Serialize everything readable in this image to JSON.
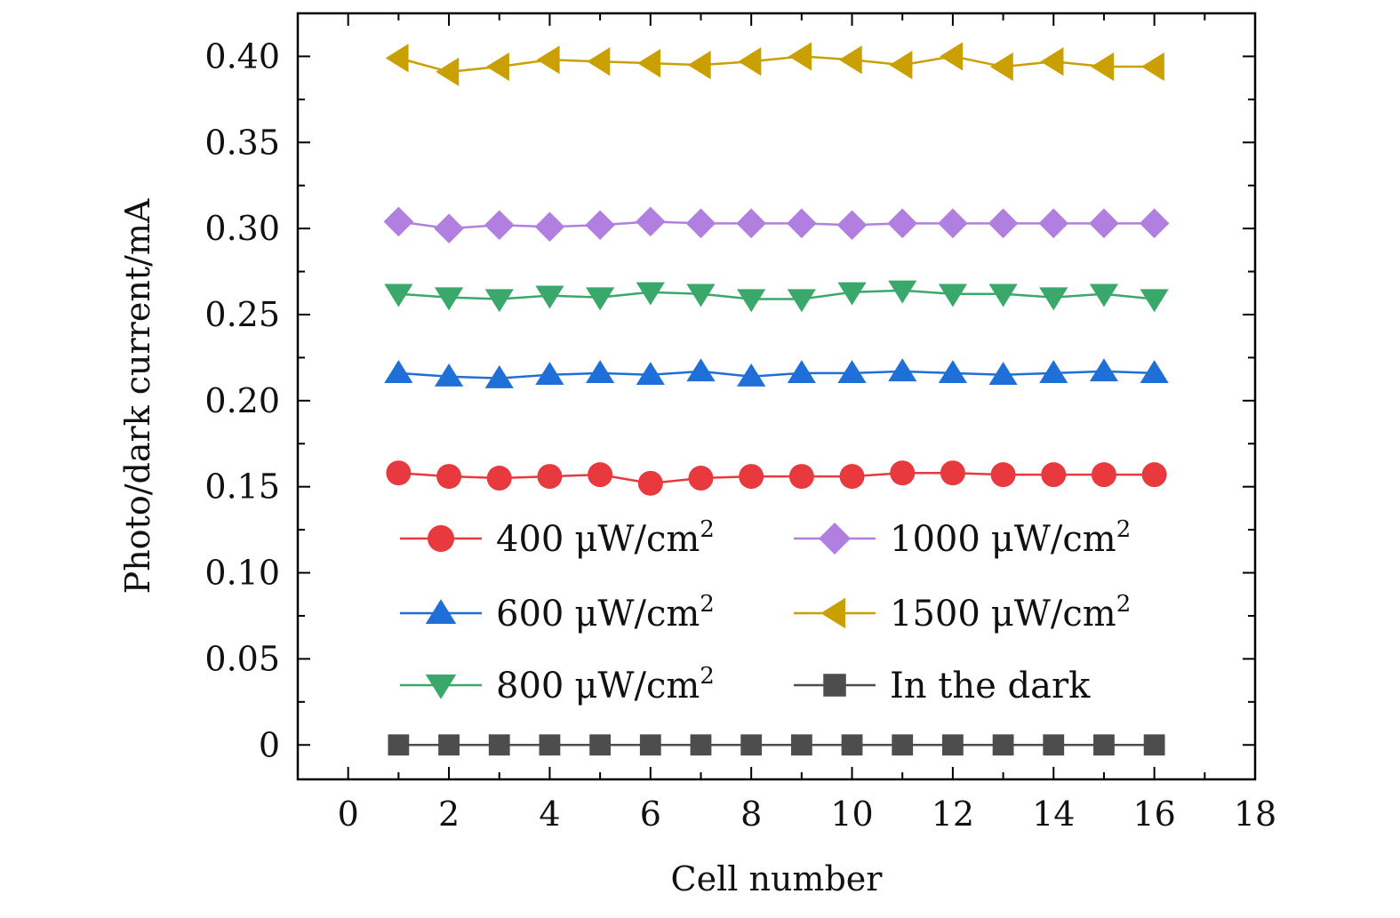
{
  "chart_data": {
    "type": "line",
    "title": "",
    "xlabel": "Cell number",
    "ylabel": "Photo/dark current/mA",
    "xlim": [
      -1,
      18
    ],
    "ylim": [
      -0.02,
      0.425
    ],
    "x_ticks": [
      0,
      2,
      4,
      6,
      8,
      10,
      12,
      14,
      16,
      18
    ],
    "y_ticks": [
      0,
      0.05,
      0.1,
      0.15,
      0.2,
      0.25,
      0.3,
      0.35,
      0.4
    ],
    "x_tick_labels": [
      "0",
      "2",
      "4",
      "6",
      "8",
      "10",
      "12",
      "14",
      "16",
      "18"
    ],
    "y_tick_labels": [
      "0",
      "0.05",
      "0.10",
      "0.15",
      "0.20",
      "0.25",
      "0.30",
      "0.35",
      "0.40"
    ],
    "grid": false,
    "legend_position": "lower-right",
    "x": [
      1,
      2,
      3,
      4,
      5,
      6,
      7,
      8,
      9,
      10,
      11,
      12,
      13,
      14,
      15,
      16
    ],
    "series": [
      {
        "name": "400",
        "unit": "μW/cm",
        "sup": "2",
        "color": "#e8393f",
        "marker": "circle",
        "values": [
          0.158,
          0.156,
          0.155,
          0.156,
          0.157,
          0.152,
          0.155,
          0.156,
          0.156,
          0.156,
          0.158,
          0.158,
          0.157,
          0.157,
          0.157,
          0.157
        ]
      },
      {
        "name": "600",
        "unit": "μW/cm",
        "sup": "2",
        "color": "#1f6fd8",
        "marker": "triangle-up",
        "values": [
          0.216,
          0.214,
          0.213,
          0.215,
          0.216,
          0.215,
          0.217,
          0.214,
          0.216,
          0.216,
          0.217,
          0.216,
          0.215,
          0.216,
          0.217,
          0.216
        ]
      },
      {
        "name": "800",
        "unit": "μW/cm",
        "sup": "2",
        "color": "#3aa86a",
        "marker": "triangle-down",
        "values": [
          0.262,
          0.26,
          0.259,
          0.261,
          0.26,
          0.263,
          0.262,
          0.259,
          0.259,
          0.263,
          0.264,
          0.262,
          0.262,
          0.26,
          0.262,
          0.259
        ]
      },
      {
        "name": "1000",
        "unit": "μW/cm",
        "sup": "2",
        "color": "#b07fe0",
        "marker": "diamond",
        "values": [
          0.304,
          0.3,
          0.302,
          0.301,
          0.302,
          0.304,
          0.303,
          0.303,
          0.303,
          0.302,
          0.303,
          0.303,
          0.303,
          0.303,
          0.303,
          0.303
        ]
      },
      {
        "name": "1500",
        "unit": "μW/cm",
        "sup": "2",
        "color": "#c9a000",
        "marker": "triangle-left",
        "values": [
          0.399,
          0.391,
          0.394,
          0.398,
          0.397,
          0.396,
          0.395,
          0.397,
          0.4,
          0.398,
          0.395,
          0.4,
          0.394,
          0.397,
          0.394,
          0.394
        ]
      },
      {
        "name": "In the dark",
        "unit": "",
        "sup": "",
        "color": "#4d4d4d",
        "marker": "square",
        "values": [
          0,
          0,
          0,
          0,
          0,
          0,
          0,
          0,
          0,
          0,
          0,
          0,
          0,
          0,
          0,
          0
        ]
      }
    ]
  }
}
